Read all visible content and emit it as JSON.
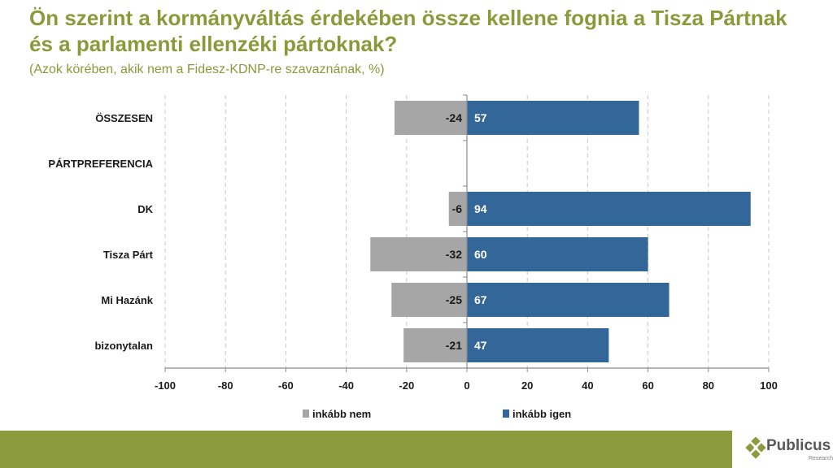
{
  "chart_data": {
    "type": "bar",
    "orientation": "horizontal",
    "stacked": "diverging",
    "title": "Ön szerint a kormányváltás érdekében össze kellene fognia a Tisza Pártnak és a parlamenti ellenzéki pártoknak?",
    "subtitle": "(Azok körében, akik nem a Fidesz-KDNP-re szavaznának, %)",
    "categories": [
      "ÖSSZESEN",
      "PÁRTPREFERENCIA",
      "DK",
      "Tisza Párt",
      "Mi Hazánk",
      "bizonytalan"
    ],
    "series": [
      {
        "name": "inkább nem",
        "color": "#a6a6a6",
        "values": [
          -24,
          null,
          -6,
          -32,
          -25,
          -21
        ]
      },
      {
        "name": "inkább igen",
        "color": "#336699",
        "values": [
          57,
          null,
          94,
          60,
          67,
          47
        ]
      }
    ],
    "xlim": [
      -100,
      100
    ],
    "xticks": [
      -100,
      -80,
      -60,
      -40,
      -20,
      0,
      20,
      40,
      60,
      80,
      100
    ],
    "grid": "vertical dashed",
    "legend": "bottom",
    "xlabel": "",
    "ylabel": ""
  },
  "header": {
    "title": "Ön szerint a kormányváltás érdekében össze kellene fognia a Tisza Pártnak és a parlamenti ellenzéki pártoknak?",
    "subtitle": "(Azok körében, akik nem a Fidesz-KDNP-re szavaznának, %)"
  },
  "brand": {
    "name": "Publicus",
    "sub": "Research",
    "accent": "#8b9b3e"
  }
}
